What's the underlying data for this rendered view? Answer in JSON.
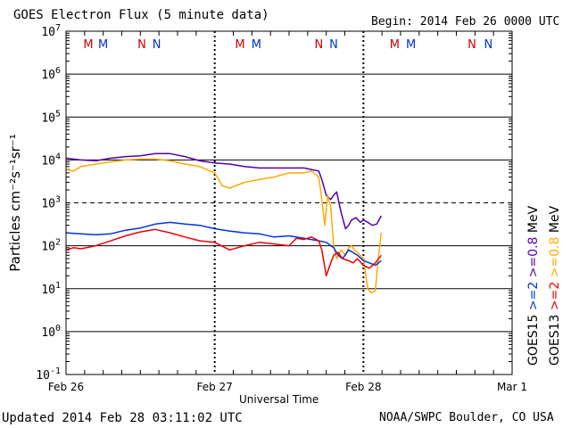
{
  "header": {
    "title": "GOES Electron Flux (5 minute data)",
    "begin": "Begin: 2014 Feb 26 0000 UTC"
  },
  "footer": {
    "updated": "Updated 2014 Feb 28 03:11:02 UTC",
    "credit": "NOAA/SWPC Boulder, CO USA"
  },
  "colors": {
    "goes15_high": "#5500aa",
    "goes13_high": "#ffaa00",
    "goes15_low": "#0033dd",
    "goes13_low": "#ee0000",
    "marker_M": "#cc0000",
    "marker_N": "#cc0000",
    "marker_N_blue": "#0033cc",
    "marker_M_blue": "#0033cc"
  },
  "chart_data": {
    "type": "line",
    "title": "GOES Electron Flux (5 minute data)",
    "xlabel": "Universal Time",
    "ylabel": "Particles cm⁻²s⁻¹sr⁻¹",
    "y_scale": "log",
    "ylim": [
      0.1,
      10000000
    ],
    "y_ticks": [
      {
        "value": 0.1,
        "base": "10",
        "exp": "-1"
      },
      {
        "value": 1,
        "base": "10",
        "exp": "0"
      },
      {
        "value": 10,
        "base": "10",
        "exp": "1"
      },
      {
        "value": 100,
        "base": "10",
        "exp": "2"
      },
      {
        "value": 1000,
        "base": "10",
        "exp": "3"
      },
      {
        "value": 10000,
        "base": "10",
        "exp": "4"
      },
      {
        "value": 100000,
        "base": "10",
        "exp": "5"
      },
      {
        "value": 1000000,
        "base": "10",
        "exp": "6"
      },
      {
        "value": 10000000,
        "base": "10",
        "exp": "7"
      }
    ],
    "x_ticks": [
      {
        "day": 0,
        "label": "Feb 26"
      },
      {
        "day": 1,
        "label": "Feb 27"
      },
      {
        "day": 2,
        "label": "Feb 28"
      },
      {
        "day": 3,
        "label": "Mar 1"
      }
    ],
    "xlim_days": [
      0,
      3
    ],
    "alert_threshold": 1000,
    "markers": [
      {
        "day": 0.15,
        "label": "M",
        "color": "red"
      },
      {
        "day": 0.25,
        "label": "M",
        "color": "blue"
      },
      {
        "day": 0.51,
        "label": "N",
        "color": "red"
      },
      {
        "day": 0.61,
        "label": "N",
        "color": "blue"
      },
      {
        "day": 1.17,
        "label": "M",
        "color": "red"
      },
      {
        "day": 1.28,
        "label": "M",
        "color": "blue"
      },
      {
        "day": 1.7,
        "label": "N",
        "color": "red"
      },
      {
        "day": 1.8,
        "label": "N",
        "color": "blue"
      },
      {
        "day": 2.21,
        "label": "M",
        "color": "red"
      },
      {
        "day": 2.32,
        "label": "M",
        "color": "blue"
      },
      {
        "day": 2.73,
        "label": "N",
        "color": "red"
      },
      {
        "day": 2.84,
        "label": "N",
        "color": "blue"
      }
    ],
    "legend": [
      {
        "sat": "GOES15",
        "energy": ">=2",
        "unit": "",
        "color": "#0033dd"
      },
      {
        "sat": "",
        "energy": ">=0.8",
        "unit": "MeV",
        "color": "#5500aa"
      },
      {
        "sat": "GOES13",
        "energy": ">=2",
        "unit": "",
        "color": "#ee0000"
      },
      {
        "sat": "",
        "energy": ">=0.8",
        "unit": "MeV",
        "color": "#ffaa00"
      }
    ],
    "series": [
      {
        "name": "GOES15 >=0.8 MeV",
        "color": "#5500aa",
        "x": [
          0,
          0.1,
          0.2,
          0.3,
          0.4,
          0.5,
          0.6,
          0.7,
          0.8,
          0.9,
          1.0,
          1.1,
          1.2,
          1.3,
          1.4,
          1.5,
          1.6,
          1.7,
          1.72,
          1.75,
          1.78,
          1.8,
          1.82,
          1.85,
          1.88,
          1.9,
          1.92,
          1.95,
          1.98,
          2.0,
          2.03,
          2.06,
          2.09,
          2.12
        ],
        "y": [
          11000,
          10000,
          9500,
          11000,
          12000,
          12500,
          14000,
          14000,
          12000,
          9500,
          8500,
          8000,
          7000,
          6500,
          6500,
          6500,
          6500,
          5500,
          3500,
          1500,
          1200,
          1500,
          1800,
          600,
          250,
          300,
          400,
          450,
          350,
          400,
          350,
          300,
          320,
          500
        ]
      },
      {
        "name": "GOES13 >=0.8 MeV",
        "color": "#ffaa00",
        "x": [
          0,
          0.05,
          0.1,
          0.2,
          0.3,
          0.4,
          0.5,
          0.6,
          0.7,
          0.8,
          0.9,
          1.0,
          1.05,
          1.1,
          1.2,
          1.3,
          1.4,
          1.5,
          1.6,
          1.65,
          1.7,
          1.72,
          1.74,
          1.76,
          1.78,
          1.8,
          1.82,
          1.85,
          1.88,
          1.9,
          1.92,
          1.94,
          1.96,
          2.0,
          2.03,
          2.05,
          2.08,
          2.1,
          2.12
        ],
        "y": [
          6000,
          5500,
          7000,
          8000,
          9000,
          10000,
          10500,
          10500,
          9500,
          8000,
          7000,
          5000,
          2500,
          2200,
          3000,
          3500,
          4000,
          5000,
          5000,
          5500,
          4000,
          1200,
          300,
          1500,
          800,
          100,
          50,
          80,
          60,
          90,
          100,
          80,
          70,
          50,
          10,
          8,
          9,
          50,
          200
        ]
      },
      {
        "name": "GOES15 >=2 MeV",
        "color": "#0033dd",
        "x": [
          0,
          0.1,
          0.2,
          0.3,
          0.4,
          0.5,
          0.6,
          0.7,
          0.8,
          0.9,
          1.0,
          1.1,
          1.2,
          1.3,
          1.4,
          1.5,
          1.6,
          1.65,
          1.7,
          1.75,
          1.8,
          1.83,
          1.86,
          1.9,
          1.93,
          1.96,
          2.0,
          2.04,
          2.08,
          2.12
        ],
        "y": [
          200,
          190,
          180,
          190,
          230,
          260,
          320,
          350,
          320,
          300,
          250,
          220,
          200,
          190,
          160,
          170,
          150,
          140,
          130,
          120,
          90,
          60,
          50,
          80,
          70,
          60,
          45,
          40,
          35,
          45
        ]
      },
      {
        "name": "GOES13 >=2 MeV",
        "color": "#ee0000",
        "x": [
          0,
          0.05,
          0.1,
          0.2,
          0.3,
          0.4,
          0.5,
          0.6,
          0.7,
          0.8,
          0.9,
          1.0,
          1.1,
          1.2,
          1.3,
          1.4,
          1.5,
          1.55,
          1.6,
          1.65,
          1.7,
          1.72,
          1.75,
          1.78,
          1.8,
          1.83,
          1.86,
          1.9,
          1.93,
          1.96,
          2.0,
          2.04,
          2.08,
          2.12
        ],
        "y": [
          80,
          90,
          85,
          100,
          130,
          170,
          210,
          240,
          200,
          160,
          130,
          120,
          80,
          100,
          120,
          110,
          100,
          150,
          140,
          160,
          130,
          80,
          20,
          40,
          60,
          70,
          50,
          45,
          40,
          50,
          35,
          30,
          40,
          60
        ]
      }
    ]
  }
}
